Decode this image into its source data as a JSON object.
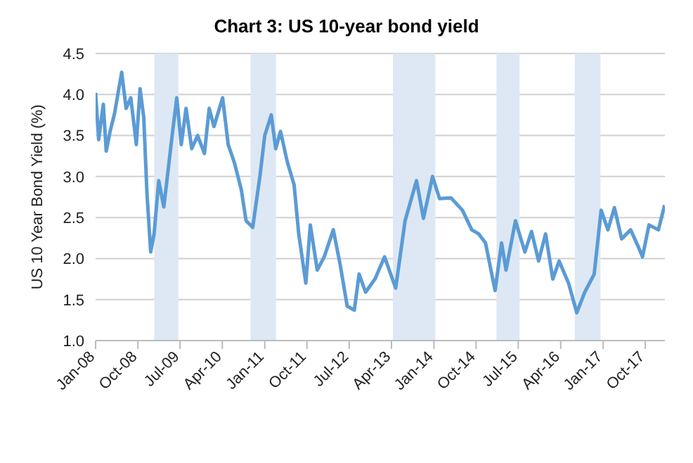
{
  "chart_data": {
    "type": "line",
    "title": "Chart 3: US 10-year bond yield",
    "ylabel": "US 10 Year Bond Yield (%)",
    "x": [
      "2008-01-01",
      "2008-01-21",
      "2008-02-20",
      "2008-03-10",
      "2008-04-04",
      "2008-05-03",
      "2008-06-18",
      "2008-07-17",
      "2008-08-16",
      "2008-09-21",
      "2008-10-15",
      "2008-11-08",
      "2008-11-29",
      "2008-12-23",
      "2009-01-14",
      "2009-02-13",
      "2009-03-18",
      "2009-05-11",
      "2009-06-10",
      "2009-07-09",
      "2009-08-09",
      "2009-09-15",
      "2009-10-23",
      "2009-12-06",
      "2010-01-06",
      "2010-02-06",
      "2010-04-03",
      "2010-05-09",
      "2010-06-18",
      "2010-08-02",
      "2010-09-02",
      "2010-10-15",
      "2010-12-01",
      "2011-01-01",
      "2011-02-12",
      "2011-03-13",
      "2011-04-13",
      "2011-05-28",
      "2011-07-10",
      "2011-08-09",
      "2011-09-24",
      "2011-10-23",
      "2011-12-07",
      "2012-01-21",
      "2012-03-20",
      "2012-05-04",
      "2012-06-18",
      "2012-08-03",
      "2012-09-03",
      "2012-10-15",
      "2012-12-15",
      "2013-02-15",
      "2013-04-28",
      "2013-06-28",
      "2013-09-10",
      "2013-10-25",
      "2013-12-23",
      "2014-02-06",
      "2014-04-21",
      "2014-07-04",
      "2014-09-03",
      "2014-10-18",
      "2014-12-01",
      "2015-02-01",
      "2015-03-15",
      "2015-04-13",
      "2015-06-13",
      "2015-08-13",
      "2015-09-25",
      "2015-11-10",
      "2015-12-25",
      "2016-02-10",
      "2016-03-22",
      "2016-05-22",
      "2016-07-14",
      "2016-09-04",
      "2016-11-04",
      "2016-12-19",
      "2017-02-01",
      "2017-03-15",
      "2017-05-01",
      "2017-06-28",
      "2017-08-13",
      "2017-09-13",
      "2017-10-25",
      "2017-12-25",
      "2018-02-03"
    ],
    "series": [
      {
        "color": "#5b9bd5",
        "values": [
          4.02,
          3.45,
          3.88,
          3.31,
          3.55,
          3.77,
          4.27,
          3.83,
          3.96,
          3.39,
          4.07,
          3.72,
          2.79,
          2.08,
          2.3,
          2.95,
          2.63,
          3.5,
          3.96,
          3.39,
          3.83,
          3.34,
          3.5,
          3.28,
          3.83,
          3.61,
          3.96,
          3.39,
          3.17,
          2.84,
          2.46,
          2.38,
          3.01,
          3.5,
          3.75,
          3.34,
          3.55,
          3.17,
          2.9,
          2.3,
          1.7,
          2.41,
          1.86,
          2.02,
          2.35,
          1.92,
          1.42,
          1.37,
          1.81,
          1.59,
          1.75,
          2.02,
          1.64,
          2.46,
          2.95,
          2.49,
          3.0,
          2.73,
          2.74,
          2.59,
          2.35,
          2.3,
          2.19,
          1.61,
          2.19,
          1.86,
          2.46,
          2.08,
          2.33,
          1.97,
          2.3,
          1.75,
          1.97,
          1.7,
          1.34,
          1.59,
          1.81,
          2.59,
          2.35,
          2.62,
          2.24,
          2.35,
          2.16,
          2.02,
          2.41,
          2.35,
          2.65
        ]
      }
    ],
    "xlim": [
      "2008-01-01",
      "2018-02-05"
    ],
    "xticks": [
      {
        "value": "2008-01-01",
        "label": "Jan-08"
      },
      {
        "value": "2008-10-01",
        "label": "Oct-08"
      },
      {
        "value": "2009-07-01",
        "label": "Jul-09"
      },
      {
        "value": "2010-04-01",
        "label": "Apr-10"
      },
      {
        "value": "2011-01-01",
        "label": "Jan-11"
      },
      {
        "value": "2011-10-01",
        "label": "Oct-11"
      },
      {
        "value": "2012-07-01",
        "label": "Jul-12"
      },
      {
        "value": "2013-04-01",
        "label": "Apr-13"
      },
      {
        "value": "2014-01-01",
        "label": "Jan-14"
      },
      {
        "value": "2014-10-01",
        "label": "Oct-14"
      },
      {
        "value": "2015-07-01",
        "label": "Jul-15"
      },
      {
        "value": "2016-04-01",
        "label": "Apr-16"
      },
      {
        "value": "2017-01-01",
        "label": "Jan-17"
      },
      {
        "value": "2017-10-01",
        "label": "Oct-17"
      }
    ],
    "ylim": [
      1.0,
      4.5
    ],
    "yticks": [
      {
        "value": 1.0,
        "label": "1.0"
      },
      {
        "value": 1.5,
        "label": "1.5"
      },
      {
        "value": 2.0,
        "label": "2.0"
      },
      {
        "value": 2.5,
        "label": "2.5"
      },
      {
        "value": 3.0,
        "label": "3.0"
      },
      {
        "value": 3.5,
        "label": "3.5"
      },
      {
        "value": 4.0,
        "label": "4.0"
      },
      {
        "value": 4.5,
        "label": "4.5"
      }
    ],
    "bands": [
      {
        "axis": "x",
        "from": "2009-01-15",
        "to": "2009-06-20",
        "color": "#dde8f4"
      },
      {
        "axis": "x",
        "from": "2010-10-01",
        "to": "2011-03-15",
        "color": "#dde8f4"
      },
      {
        "axis": "x",
        "from": "2013-04-10",
        "to": "2014-01-10",
        "color": "#dde8f4"
      },
      {
        "axis": "x",
        "from": "2015-02-10",
        "to": "2015-07-10",
        "color": "#dde8f4"
      },
      {
        "axis": "x",
        "from": "2016-07-01",
        "to": "2016-12-15",
        "color": "#dde8f4"
      }
    ],
    "grid": "y",
    "legend": false,
    "marker": "none",
    "line_style": "solid"
  }
}
